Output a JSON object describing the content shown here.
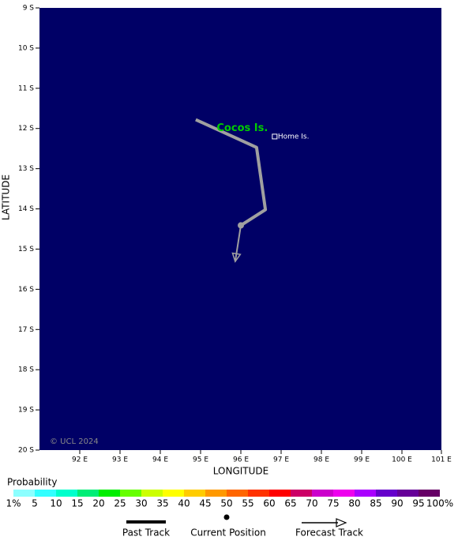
{
  "map": {
    "xlim": [
      91,
      101
    ],
    "ylim": [
      -20,
      -9
    ],
    "xticks": [
      {
        "value": 92,
        "label": "92 E"
      },
      {
        "value": 93,
        "label": "93 E"
      },
      {
        "value": 94,
        "label": "94 E"
      },
      {
        "value": 95,
        "label": "95 E"
      },
      {
        "value": 96,
        "label": "96 E"
      },
      {
        "value": 97,
        "label": "97 E"
      },
      {
        "value": 98,
        "label": "98 E"
      },
      {
        "value": 99,
        "label": "99 E"
      },
      {
        "value": 100,
        "label": "100 E"
      },
      {
        "value": 101,
        "label": "101 E"
      }
    ],
    "yticks": [
      {
        "value": -9,
        "label": "9 S"
      },
      {
        "value": -10,
        "label": "10 S"
      },
      {
        "value": -11,
        "label": "11 S"
      },
      {
        "value": -12,
        "label": "12 S"
      },
      {
        "value": -13,
        "label": "13 S"
      },
      {
        "value": -14,
        "label": "14 S"
      },
      {
        "value": -15,
        "label": "15 S"
      },
      {
        "value": -16,
        "label": "16 S"
      },
      {
        "value": -17,
        "label": "17 S"
      },
      {
        "value": -18,
        "label": "18 S"
      },
      {
        "value": -19,
        "label": "19 S"
      },
      {
        "value": -20,
        "label": "20 S"
      }
    ],
    "xlabel": "LONGITUDE",
    "ylabel": "LATITUDE",
    "background": "#000066",
    "copyright": "© UCL 2024",
    "past_track": {
      "lon": [
        94.88,
        96.39,
        96.61,
        96.0
      ],
      "lat": [
        -11.78,
        -12.47,
        -14.02,
        -14.41
      ],
      "color": "#a0a0a0"
    },
    "current_position": {
      "lon": 96.0,
      "lat": -14.41,
      "color": "#a0a0a0"
    },
    "forecast_track": {
      "lon": [
        96.0,
        95.86
      ],
      "lat": [
        -14.41,
        -15.31
      ],
      "color": "#a0a0a0"
    },
    "places": [
      {
        "name": "Cocos Is.",
        "lon": 95.4,
        "lat": -12.0,
        "color": "#00cc00"
      },
      {
        "name": "Home Is.",
        "lon": 96.84,
        "lat": -12.2,
        "color": "#ffffff"
      }
    ]
  },
  "legend": {
    "title": "Probability",
    "labels": [
      "1%",
      "5",
      "10",
      "15",
      "20",
      "25",
      "30",
      "35",
      "40",
      "45",
      "50",
      "55",
      "60",
      "65",
      "70",
      "75",
      "80",
      "85",
      "90",
      "95",
      "100%"
    ],
    "colors": [
      "#8cffff",
      "#33ffff",
      "#00ffcc",
      "#00ee77",
      "#00ee00",
      "#66ff00",
      "#ccff00",
      "#ffff00",
      "#ffcc00",
      "#ff9900",
      "#ff6600",
      "#ff3300",
      "#ff0000",
      "#cc0066",
      "#cc00cc",
      "#ee00ee",
      "#aa00ff",
      "#6600cc",
      "#660099",
      "#660066"
    ],
    "keys": [
      "Past Track",
      "Current Position",
      "Forecast Track"
    ]
  }
}
